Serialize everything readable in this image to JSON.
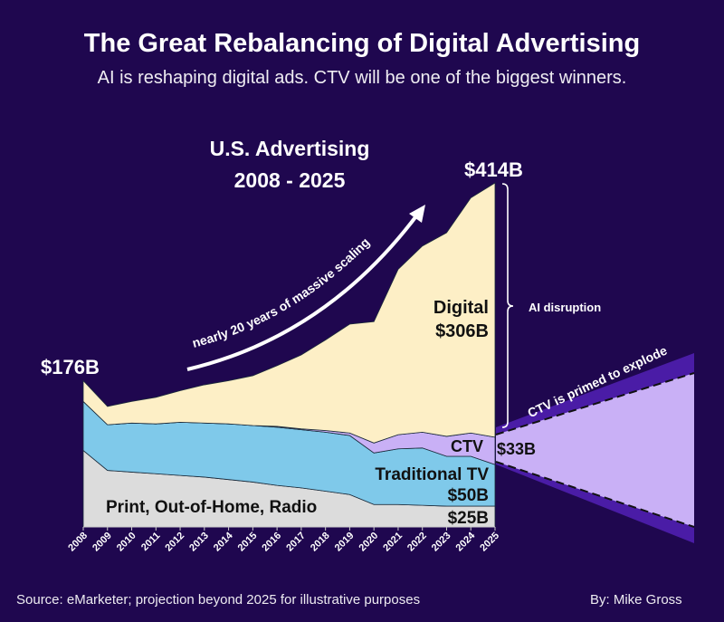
{
  "title": "The Great Rebalancing of Digital Advertising",
  "subtitle": "AI is reshaping digital ads. CTV will be one of the biggest winners.",
  "source": "Source: eMarketer; projection beyond 2025 for illustrative purposes",
  "byline": "By: Mike Gross",
  "colors": {
    "background": "#1f074f",
    "digital": "#fdefc6",
    "ctv": "#c9b0f6",
    "traditional_tv": "#7fc9ea",
    "print": "#dcdcdc",
    "cone_outer": "#4a1ca6"
  },
  "chart_data": {
    "type": "area",
    "stacked": true,
    "title": "U.S. Advertising",
    "subtitle": "2008 - 2025",
    "categories": [
      "2008",
      "2009",
      "2010",
      "2011",
      "2012",
      "2013",
      "2014",
      "2015",
      "2016",
      "2017",
      "2018",
      "2019",
      "2020",
      "2021",
      "2022",
      "2023",
      "2024",
      "2025"
    ],
    "unit": "$B",
    "ylim": [
      0,
      414
    ],
    "series": [
      {
        "name": "Print, Out-of-Home, Radio",
        "color": "#dcdcdc",
        "values": [
          92,
          68,
          66,
          64,
          62,
          60,
          57,
          54,
          50,
          47,
          43,
          39,
          27,
          27,
          26,
          25,
          25,
          25
        ]
      },
      {
        "name": "Traditional TV",
        "color": "#7fc9ea",
        "values": [
          59,
          55,
          59,
          60,
          64,
          65,
          67,
          68,
          70,
          70,
          71,
          71,
          62,
          67,
          69,
          60,
          60,
          50
        ]
      },
      {
        "name": "CTV",
        "color": "#c9b0f6",
        "values": [
          0,
          0,
          0,
          0,
          0,
          0,
          0,
          0,
          1,
          1,
          2,
          3,
          12,
          17,
          19,
          24,
          28,
          33
        ]
      },
      {
        "name": "Digital",
        "color": "#fdefc6",
        "values": [
          25,
          22,
          26,
          32,
          38,
          46,
          52,
          60,
          73,
          89,
          109,
          131,
          146,
          199,
          224,
          245,
          283,
          306
        ]
      }
    ],
    "labels": {
      "start_total": "$176B",
      "end_total": "$414B",
      "digital_name": "Digital",
      "digital_value": "$306B",
      "ctv_name": "CTV",
      "ctv_value": "$33B",
      "tv_name": "Traditional TV",
      "tv_value": "$50B",
      "print_name": "Print, Out-of-Home, Radio",
      "print_value": "$25B"
    },
    "annotations": {
      "growth_arrow": "nearly 20 years of massive scaling",
      "bracket": "AI disruption",
      "cone": "CTV is primed to explode"
    },
    "grid": false,
    "legend": "none"
  }
}
